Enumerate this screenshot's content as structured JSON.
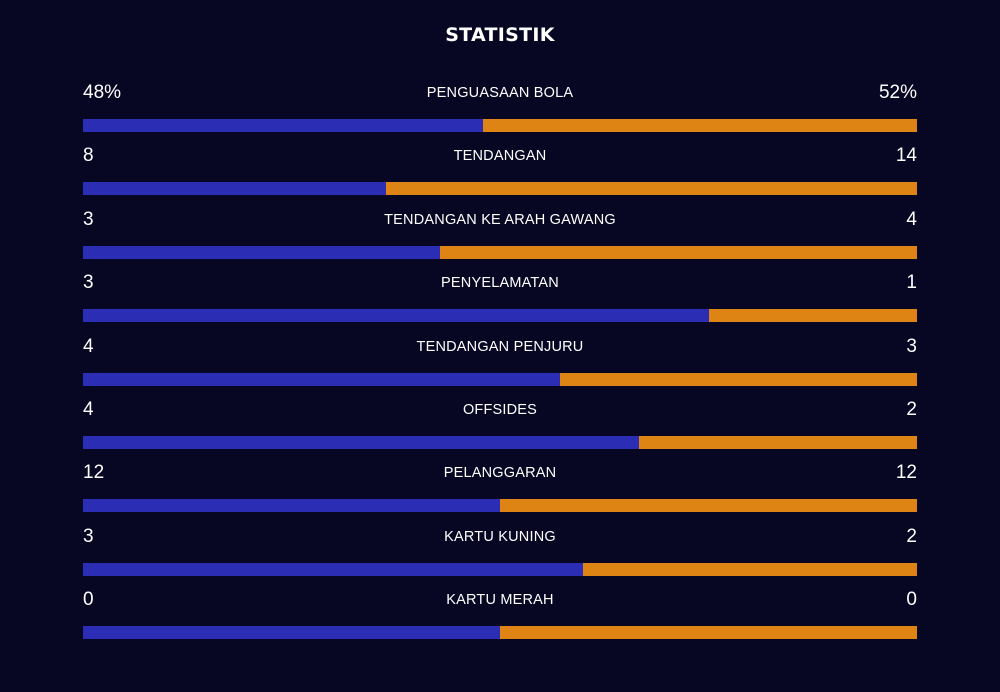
{
  "title": "STATISTIK",
  "colors": {
    "background": "#080723",
    "home": "#2b2eb4",
    "away": "#de8415",
    "text": "#ffffff"
  },
  "stats": [
    {
      "label": "PENGUASAAN BOLA",
      "home": "48%",
      "away": "52%",
      "home_share": 0.48
    },
    {
      "label": "TENDANGAN",
      "home": "8",
      "away": "14",
      "home_share": 0.3636
    },
    {
      "label": "TENDANGAN KE ARAH GAWANG",
      "home": "3",
      "away": "4",
      "home_share": 0.4286
    },
    {
      "label": "PENYELAMATAN",
      "home": "3",
      "away": "1",
      "home_share": 0.75
    },
    {
      "label": "TENDANGAN PENJURU",
      "home": "4",
      "away": "3",
      "home_share": 0.5714
    },
    {
      "label": "OFFSIDES",
      "home": "4",
      "away": "2",
      "home_share": 0.6667
    },
    {
      "label": "PELANGGARAN",
      "home": "12",
      "away": "12",
      "home_share": 0.5
    },
    {
      "label": "KARTU KUNING",
      "home": "3",
      "away": "2",
      "home_share": 0.6
    },
    {
      "label": "KARTU MERAH",
      "home": "0",
      "away": "0",
      "home_share": 0.5
    }
  ]
}
